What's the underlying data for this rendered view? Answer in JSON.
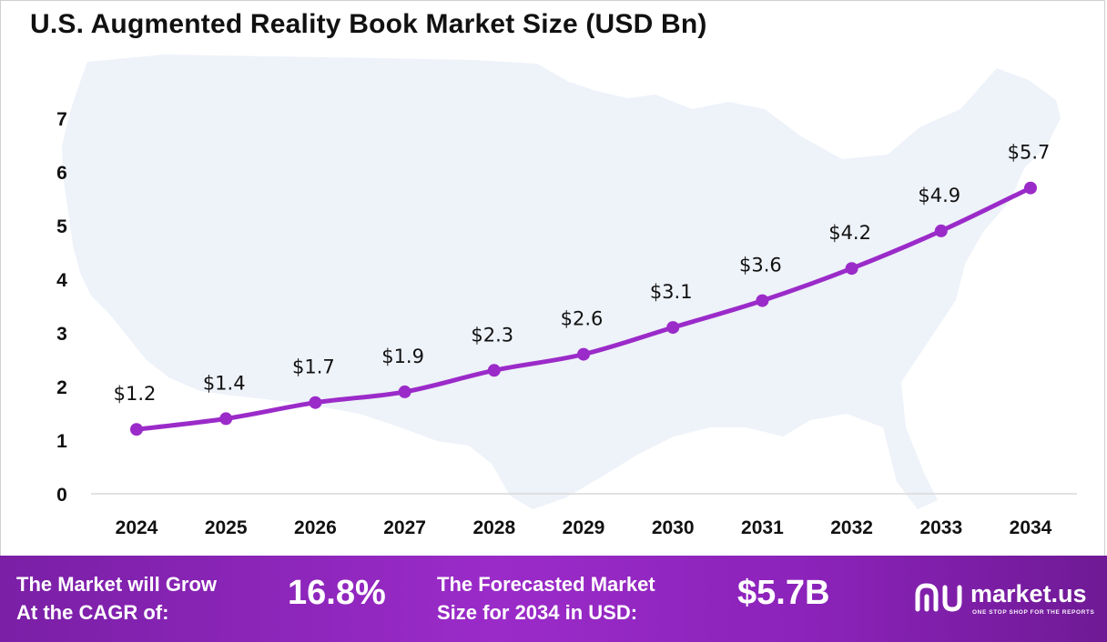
{
  "title": "U.S. Augmented Reality Book Market Size (USD Bn)",
  "chart_data": {
    "type": "line",
    "title": "U.S. Augmented Reality Book Market Size (USD Bn)",
    "xlabel": "",
    "ylabel": "",
    "categories": [
      "2024",
      "2025",
      "2026",
      "2027",
      "2028",
      "2029",
      "2030",
      "2031",
      "2032",
      "2033",
      "2034"
    ],
    "series": [
      {
        "name": "Market Size (USD Bn)",
        "values": [
          1.2,
          1.4,
          1.7,
          1.9,
          2.3,
          2.6,
          3.1,
          3.6,
          4.2,
          4.9,
          5.7
        ],
        "labels": [
          "$1.2",
          "$1.4",
          "$1.7",
          "$1.9",
          "$2.3",
          "$2.6",
          "$3.1",
          "$3.6",
          "$4.2",
          "$4.9",
          "$5.7"
        ]
      }
    ],
    "yticks": [
      "0",
      "1",
      "2",
      "3",
      "4",
      "5",
      "6",
      "7"
    ],
    "ylim": [
      0,
      7
    ],
    "grid": false,
    "legend": "none",
    "line_color": "#9b2bc9",
    "map_color": "#eef2f9"
  },
  "footer": {
    "cagr_text": "The Market will Grow\nAt the CAGR of:",
    "cagr_value": "16.8%",
    "forecast_text": "The Forecasted Market\nSize for 2034 in USD:",
    "forecast_value": "$5.7B",
    "brand_name": "market.us",
    "brand_tagline": "ONE STOP SHOP FOR THE REPORTS"
  }
}
